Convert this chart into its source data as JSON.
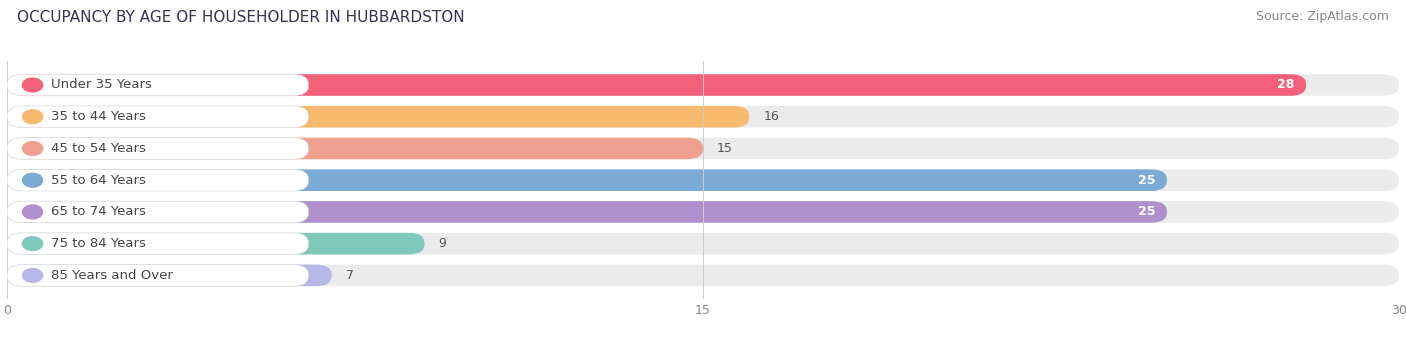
{
  "title": "OCCUPANCY BY AGE OF HOUSEHOLDER IN HUBBARDSTON",
  "source": "Source: ZipAtlas.com",
  "categories": [
    "Under 35 Years",
    "35 to 44 Years",
    "45 to 54 Years",
    "55 to 64 Years",
    "65 to 74 Years",
    "75 to 84 Years",
    "85 Years and Over"
  ],
  "values": [
    28,
    16,
    15,
    25,
    25,
    9,
    7
  ],
  "bar_colors": [
    "#F2607A",
    "#F7B96E",
    "#F0A090",
    "#7BAAD4",
    "#B090CC",
    "#7EC9BC",
    "#B8B8E8"
  ],
  "xlim": [
    0,
    30
  ],
  "xticks": [
    0,
    15,
    30
  ],
  "title_fontsize": 11,
  "source_fontsize": 9,
  "label_fontsize": 9.5,
  "value_fontsize": 9,
  "bg_color": "#FFFFFF",
  "bar_bg": "#EBEBEC",
  "label_bg": "#FFFFFF",
  "bar_height": 0.68,
  "bar_gap": 0.12
}
